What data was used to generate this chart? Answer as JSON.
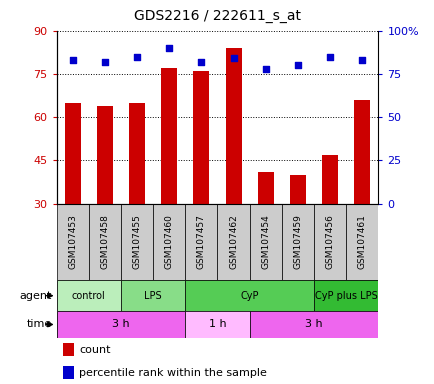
{
  "title": "GDS2216 / 222611_s_at",
  "samples": [
    "GSM107453",
    "GSM107458",
    "GSM107455",
    "GSM107460",
    "GSM107457",
    "GSM107462",
    "GSM107454",
    "GSM107459",
    "GSM107456",
    "GSM107461"
  ],
  "counts": [
    65,
    64,
    65,
    77,
    76,
    84,
    41,
    40,
    47,
    66
  ],
  "percentiles": [
    83,
    82,
    85,
    90,
    82,
    84,
    78,
    80,
    85,
    83
  ],
  "ylim_left": [
    30,
    90
  ],
  "ylim_right": [
    0,
    100
  ],
  "yticks_left": [
    30,
    45,
    60,
    75,
    90
  ],
  "yticks_right": [
    0,
    25,
    50,
    75,
    100
  ],
  "agent_groups": [
    {
      "label": "control",
      "start": 0,
      "end": 2,
      "color": "#bbeebb"
    },
    {
      "label": "LPS",
      "start": 2,
      "end": 4,
      "color": "#88dd88"
    },
    {
      "label": "CyP",
      "start": 4,
      "end": 8,
      "color": "#55cc55"
    },
    {
      "label": "CyP plus LPS",
      "start": 8,
      "end": 10,
      "color": "#33bb33"
    }
  ],
  "time_groups": [
    {
      "label": "3 h",
      "start": 0,
      "end": 4,
      "color": "#ee66ee"
    },
    {
      "label": "1 h",
      "start": 4,
      "end": 6,
      "color": "#ffbbff"
    },
    {
      "label": "3 h",
      "start": 6,
      "end": 10,
      "color": "#ee66ee"
    }
  ],
  "bar_color": "#cc0000",
  "dot_color": "#0000cc",
  "grid_color": "#000000",
  "left_tick_color": "#cc0000",
  "right_tick_color": "#0000cc",
  "sample_bg_color": "#cccccc",
  "background_color": "#ffffff"
}
